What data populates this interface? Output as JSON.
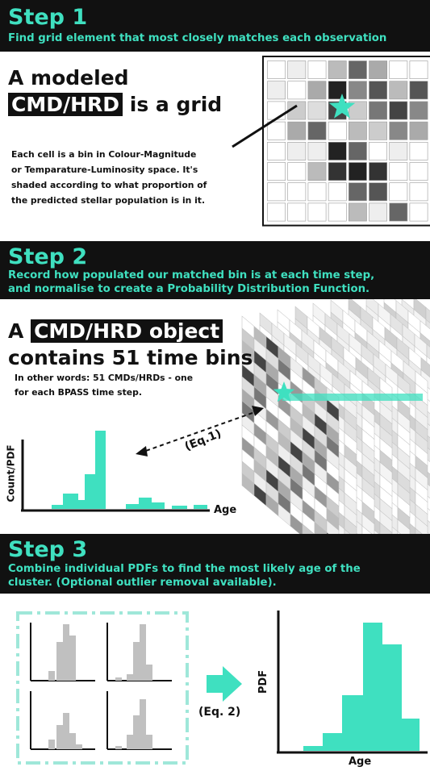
{
  "step1": {
    "title": "Step 1",
    "subtitle": "Find grid element that most closely matches each observation",
    "heading_line1": "A modeled",
    "heading_highlight": "CMD/HRD",
    "heading_rest": " is a grid",
    "body_lines": [
      "Each cell is a bin in Colour-Magnitude",
      "or Temparature-Luminosity space. It's",
      "shaded according to what proportion of",
      "the predicted stellar population is in it."
    ]
  },
  "step2": {
    "title": "Step 2",
    "subtitle_lines": [
      "Record how populated our matched bin is at each time step,",
      "and normalise to create a Probability Distribution Function."
    ],
    "heading_prefix": "A",
    "heading_highlight": "CMD/HRD object",
    "heading_line2": "contains 51 time bins",
    "body_lines": [
      "In other words: 51 CMDs/HRDs - one",
      "for each BPASS time step."
    ],
    "eq_label": "(Eq.1)",
    "ylabel": "Count/PDF",
    "xlabel": "Age"
  },
  "step3": {
    "title": "Step 3",
    "subtitle_lines": [
      "Combine individual PDFs to find the most likely age of the",
      "cluster. (Optional outlier removal available)."
    ],
    "eq_label": "(Eq. 2)",
    "ylabel": "PDF",
    "xlabel": "Age"
  },
  "colors": {
    "accent": "#3fe0c0",
    "banner": "#111111"
  }
}
